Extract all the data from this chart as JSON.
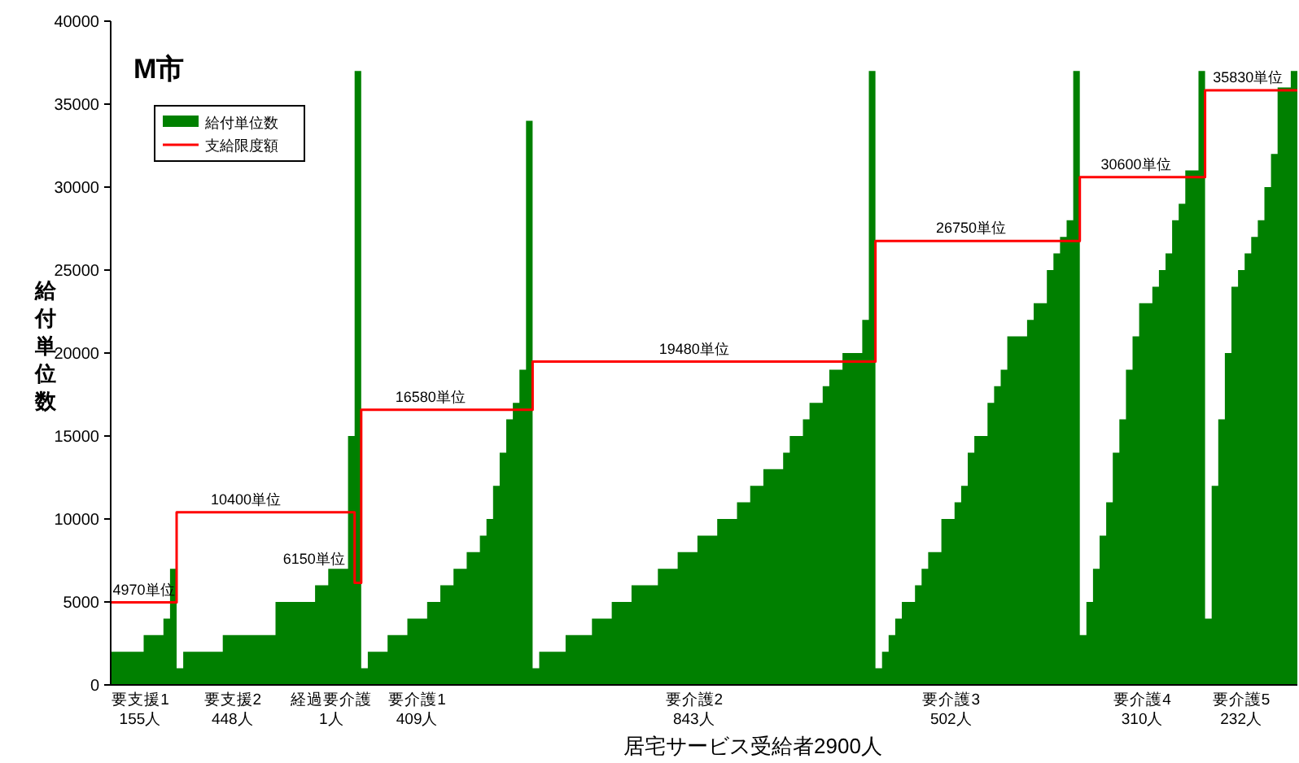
{
  "chart_data": {
    "type": "area",
    "title": "M市",
    "xlabel": "居宅サービス受給者2900人",
    "ylabel": "給付単位数",
    "ylim": [
      0,
      40000
    ],
    "yticks": [
      0,
      5000,
      10000,
      15000,
      20000,
      25000,
      30000,
      35000,
      40000
    ],
    "legend": "top left",
    "grid": false,
    "categories": [
      null,
      null,
      null,
      null,
      "要支援1\n155人",
      null,
      null,
      null,
      null,
      null,
      null,
      null,
      null,
      null,
      null,
      null,
      null,
      null,
      "要支援2\n448人",
      null,
      null,
      null,
      null,
      null,
      null,
      null,
      null,
      null,
      null,
      null,
      null,
      null,
      null,
      "経過要介護\n1人",
      null,
      null,
      null,
      null,
      null,
      null,
      null,
      null,
      null,
      null,
      null,
      null,
      "要介護1\n409人",
      null,
      null,
      null,
      null,
      null,
      null,
      null,
      null,
      null,
      null,
      null,
      null,
      null,
      null,
      null,
      null,
      null,
      null,
      null,
      null,
      null,
      null,
      null,
      null,
      null,
      null,
      null,
      null,
      null,
      null,
      null,
      null,
      null,
      null,
      null,
      null,
      null,
      null,
      null,
      null,
      null,
      "要介護2\n843人",
      null,
      null,
      null,
      null,
      null,
      null,
      null,
      null,
      null,
      null,
      null,
      null,
      null,
      null,
      null,
      null,
      null,
      null,
      null,
      null,
      null,
      null,
      null,
      null,
      null,
      null,
      null,
      null,
      null,
      null,
      null,
      null,
      null,
      null,
      null,
      null,
      null,
      null,
      "要介護3\n502人",
      null,
      null,
      null,
      null,
      null,
      null,
      null,
      null,
      null,
      null,
      null,
      null,
      null,
      null,
      null,
      null,
      null,
      null,
      null,
      null,
      null,
      null,
      null,
      null,
      null,
      null,
      null,
      null,
      "要介護4\n310人",
      null,
      null,
      null,
      null,
      null,
      null,
      null,
      null,
      null,
      null,
      null,
      null,
      null,
      null,
      "要介護5\n232人",
      null,
      null,
      null,
      null,
      null,
      null,
      null,
      null
    ],
    "series": [
      {
        "name": "給付単位数",
        "type": "area",
        "color": "#008000",
        "values": [
          2000,
          2000,
          2000,
          2000,
          2000,
          3000,
          3000,
          3000,
          4000,
          7000,
          1000,
          2000,
          2000,
          2000,
          2000,
          2000,
          2000,
          3000,
          3000,
          3000,
          3000,
          3000,
          3000,
          3000,
          3000,
          5000,
          5000,
          5000,
          5000,
          5000,
          5000,
          6000,
          6000,
          7000,
          7000,
          7000,
          15000,
          37000,
          1000,
          2000,
          2000,
          2000,
          3000,
          3000,
          3000,
          4000,
          4000,
          4000,
          5000,
          5000,
          6000,
          6000,
          7000,
          7000,
          8000,
          8000,
          9000,
          10000,
          12000,
          14000,
          16000,
          17000,
          19000,
          34000,
          1000,
          2000,
          2000,
          2000,
          2000,
          3000,
          3000,
          3000,
          3000,
          4000,
          4000,
          4000,
          5000,
          5000,
          5000,
          6000,
          6000,
          6000,
          6000,
          7000,
          7000,
          7000,
          8000,
          8000,
          8000,
          9000,
          9000,
          9000,
          10000,
          10000,
          10000,
          11000,
          11000,
          12000,
          12000,
          13000,
          13000,
          13000,
          14000,
          15000,
          15000,
          16000,
          17000,
          17000,
          18000,
          19000,
          19000,
          20000,
          20000,
          20000,
          22000,
          37000,
          1000,
          2000,
          3000,
          4000,
          5000,
          5000,
          6000,
          7000,
          8000,
          8000,
          10000,
          10000,
          11000,
          12000,
          14000,
          15000,
          15000,
          17000,
          18000,
          19000,
          21000,
          21000,
          21000,
          22000,
          23000,
          23000,
          25000,
          26000,
          27000,
          28000,
          37000,
          3000,
          5000,
          7000,
          9000,
          11000,
          14000,
          16000,
          19000,
          21000,
          23000,
          23000,
          24000,
          25000,
          26000,
          28000,
          29000,
          31000,
          31000,
          37000,
          4000,
          12000,
          16000,
          20000,
          24000,
          25000,
          26000,
          27000,
          28000,
          30000,
          32000,
          36000,
          36000,
          37000
        ]
      },
      {
        "name": "支給限度額",
        "type": "step",
        "color": "#ff0000",
        "values": [
          4970,
          4970,
          4970,
          4970,
          4970,
          4970,
          4970,
          4970,
          4970,
          4970,
          10400,
          10400,
          10400,
          10400,
          10400,
          10400,
          10400,
          10400,
          10400,
          10400,
          10400,
          10400,
          10400,
          10400,
          10400,
          10400,
          10400,
          10400,
          10400,
          10400,
          10400,
          10400,
          10400,
          10400,
          10400,
          10400,
          10400,
          6150,
          16580,
          16580,
          16580,
          16580,
          16580,
          16580,
          16580,
          16580,
          16580,
          16580,
          16580,
          16580,
          16580,
          16580,
          16580,
          16580,
          16580,
          16580,
          16580,
          16580,
          16580,
          16580,
          16580,
          16580,
          16580,
          16580,
          19480,
          19480,
          19480,
          19480,
          19480,
          19480,
          19480,
          19480,
          19480,
          19480,
          19480,
          19480,
          19480,
          19480,
          19480,
          19480,
          19480,
          19480,
          19480,
          19480,
          19480,
          19480,
          19480,
          19480,
          19480,
          19480,
          19480,
          19480,
          19480,
          19480,
          19480,
          19480,
          19480,
          19480,
          19480,
          19480,
          19480,
          19480,
          19480,
          19480,
          19480,
          19480,
          19480,
          19480,
          19480,
          19480,
          19480,
          19480,
          19480,
          19480,
          19480,
          19480,
          26750,
          26750,
          26750,
          26750,
          26750,
          26750,
          26750,
          26750,
          26750,
          26750,
          26750,
          26750,
          26750,
          26750,
          26750,
          26750,
          26750,
          26750,
          26750,
          26750,
          26750,
          26750,
          26750,
          26750,
          26750,
          26750,
          26750,
          26750,
          26750,
          26750,
          26750,
          30600,
          30600,
          30600,
          30600,
          30600,
          30600,
          30600,
          30600,
          30600,
          30600,
          30600,
          30600,
          30600,
          30600,
          30600,
          30600,
          30600,
          30600,
          30600,
          35830,
          35830,
          35830,
          35830,
          35830,
          35830,
          35830,
          35830,
          35830,
          35830,
          35830,
          35830,
          35830,
          35830
        ],
        "value_labels": [
          null,
          null,
          null,
          null,
          null,
          null,
          "4970単位",
          null,
          null,
          null,
          null,
          null,
          null,
          null,
          null,
          null,
          null,
          null,
          null,
          null,
          "10400単位",
          null,
          null,
          null,
          null,
          null,
          null,
          null,
          null,
          null,
          null,
          null,
          null,
          null,
          null,
          null,
          null,
          "6150単位",
          null,
          null,
          null,
          null,
          null,
          null,
          null,
          null,
          null,
          null,
          "16580単位",
          null,
          null,
          null,
          null,
          null,
          null,
          null,
          null,
          null,
          null,
          null,
          null,
          null,
          null,
          null,
          null,
          null,
          null,
          null,
          null,
          null,
          null,
          null,
          null,
          null,
          null,
          null,
          null,
          null,
          null,
          null,
          null,
          null,
          null,
          null,
          null,
          null,
          null,
          null,
          "19480単位",
          null,
          null,
          null,
          null,
          null,
          null,
          null,
          null,
          null,
          null,
          null,
          null,
          null,
          null,
          null,
          null,
          null,
          null,
          null,
          null,
          null,
          null,
          null,
          null,
          null,
          null,
          null,
          null,
          null,
          null,
          null,
          null,
          null,
          null,
          null,
          null,
          null,
          null,
          null,
          null,
          null,
          "26750単位",
          null,
          null,
          null,
          null,
          null,
          null,
          null,
          null,
          null,
          null,
          null,
          null,
          null,
          null,
          null,
          null,
          null,
          null,
          null,
          null,
          null,
          null,
          null,
          null,
          "30600単位",
          null,
          null,
          null,
          null,
          null,
          null,
          null,
          null,
          null,
          null,
          null,
          null,
          null,
          null,
          null,
          null,
          "35830単位",
          null,
          null,
          null,
          null,
          null,
          null,
          null
        ]
      }
    ]
  }
}
